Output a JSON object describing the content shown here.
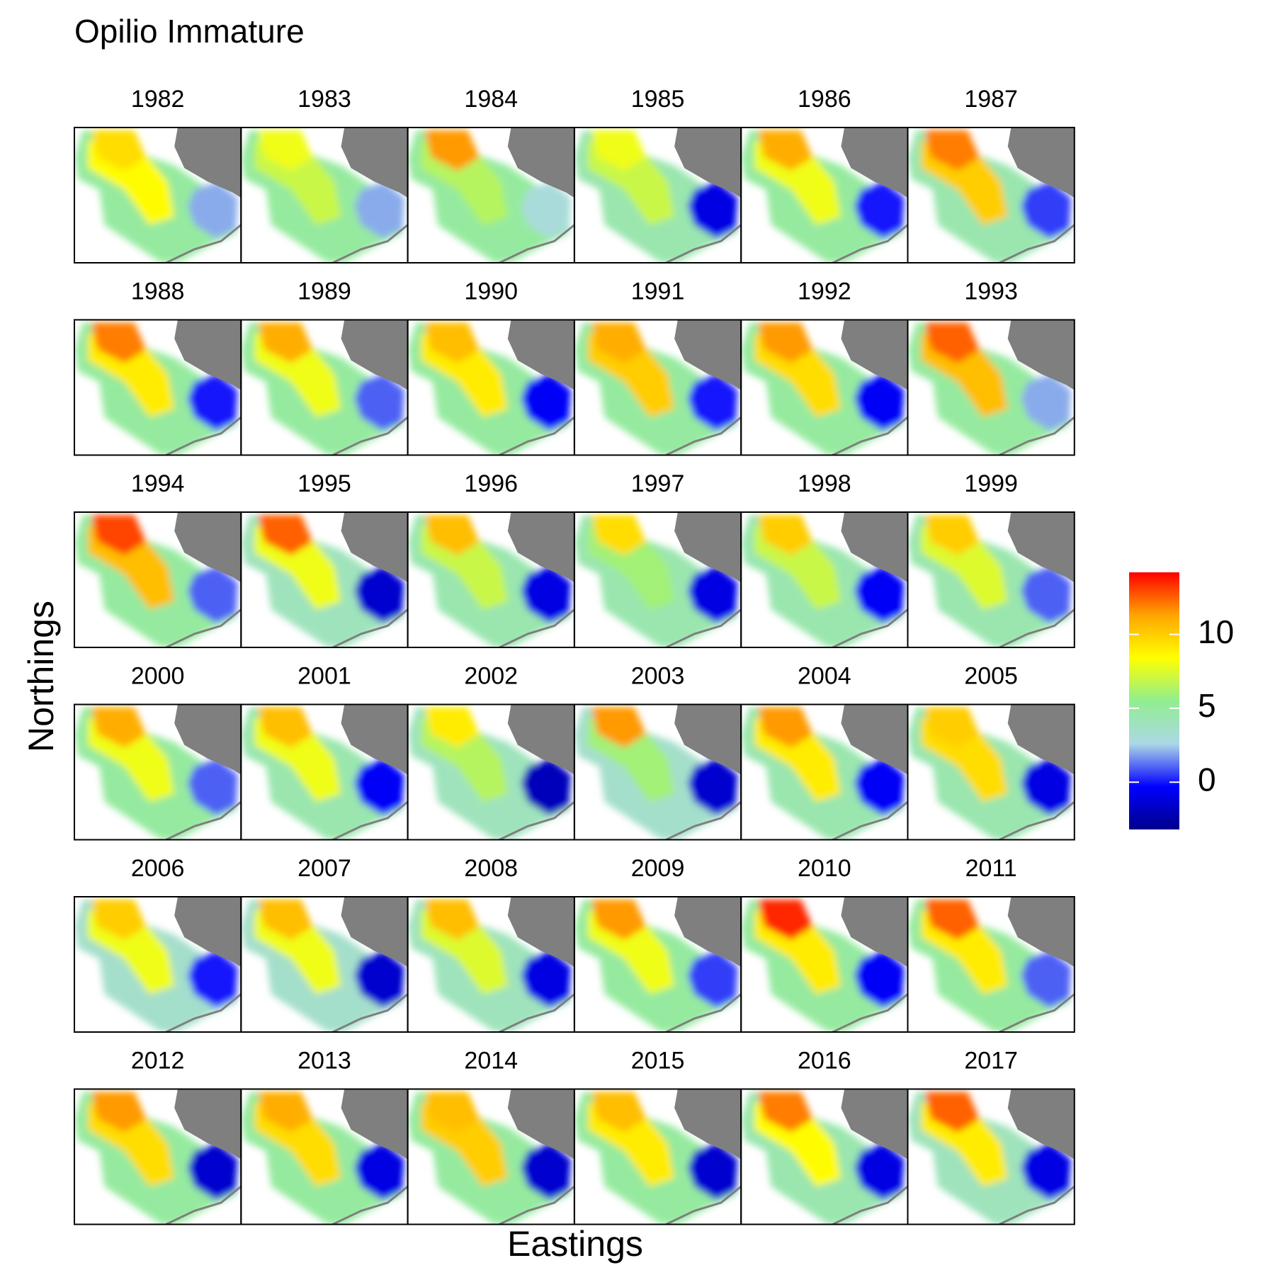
{
  "chart_data": {
    "type": "facet-map",
    "title": "Opilio Immature",
    "x_label": "Eastings",
    "y_label": "Northings",
    "clim": [
      -3.2,
      14.2
    ],
    "cticks": [
      0,
      5,
      10
    ],
    "colormap": [
      "#00008b",
      "#0000ff",
      "#add8e6",
      "#90ee90",
      "#ffff00",
      "#ffa500",
      "#ff0000"
    ],
    "land_color": "#7f7f7f",
    "panels": [
      {
        "year": "1982",
        "values": [
          9.5,
          8.5,
          5,
          2
        ]
      },
      {
        "year": "1983",
        "values": [
          8,
          7,
          5,
          2
        ]
      },
      {
        "year": "1984",
        "values": [
          11.5,
          6.5,
          5,
          3
        ]
      },
      {
        "year": "1985",
        "values": [
          8,
          7,
          4.5,
          -1
        ]
      },
      {
        "year": "1986",
        "values": [
          11,
          8,
          5,
          0
        ]
      },
      {
        "year": "1987",
        "values": [
          12,
          10,
          4.5,
          0.5
        ]
      },
      {
        "year": "1988",
        "values": [
          12,
          9,
          5,
          0
        ]
      },
      {
        "year": "1989",
        "values": [
          11,
          8,
          5,
          1
        ]
      },
      {
        "year": "1990",
        "values": [
          10.5,
          9,
          5,
          -0.5
        ]
      },
      {
        "year": "1991",
        "values": [
          11,
          10,
          5,
          0
        ]
      },
      {
        "year": "1992",
        "values": [
          11.5,
          9.5,
          5,
          -0.5
        ]
      },
      {
        "year": "1993",
        "values": [
          12.5,
          10.5,
          5,
          2
        ]
      },
      {
        "year": "1994",
        "values": [
          13,
          10.5,
          5,
          1
        ]
      },
      {
        "year": "1995",
        "values": [
          12.5,
          8,
          4,
          -1.5
        ]
      },
      {
        "year": "1996",
        "values": [
          10.5,
          7,
          4.5,
          -1
        ]
      },
      {
        "year": "1997",
        "values": [
          9.5,
          6,
          4.5,
          -1
        ]
      },
      {
        "year": "1998",
        "values": [
          10,
          7,
          4.5,
          -0.5
        ]
      },
      {
        "year": "1999",
        "values": [
          10,
          7.5,
          4.5,
          1
        ]
      },
      {
        "year": "2000",
        "values": [
          11,
          8,
          5,
          1
        ]
      },
      {
        "year": "2001",
        "values": [
          10.5,
          8,
          4.5,
          -0.5
        ]
      },
      {
        "year": "2002",
        "values": [
          9,
          6.5,
          4,
          -2
        ]
      },
      {
        "year": "2003",
        "values": [
          11.5,
          6,
          3.5,
          -1.5
        ]
      },
      {
        "year": "2004",
        "values": [
          11.5,
          9,
          4.5,
          -0.5
        ]
      },
      {
        "year": "2005",
        "values": [
          10,
          9.5,
          4.5,
          -1
        ]
      },
      {
        "year": "2006",
        "values": [
          10,
          8,
          3.5,
          0
        ]
      },
      {
        "year": "2007",
        "values": [
          10.5,
          8,
          3.5,
          -1.5
        ]
      },
      {
        "year": "2008",
        "values": [
          10.5,
          7.5,
          4,
          -1
        ]
      },
      {
        "year": "2009",
        "values": [
          11.5,
          8,
          5,
          0.5
        ]
      },
      {
        "year": "2010",
        "values": [
          13.5,
          9,
          5,
          -0.5
        ]
      },
      {
        "year": "2011",
        "values": [
          12.5,
          9,
          5,
          1
        ]
      },
      {
        "year": "2012",
        "values": [
          11.5,
          9.5,
          5,
          -1.5
        ]
      },
      {
        "year": "2013",
        "values": [
          11,
          9.5,
          5,
          -1
        ]
      },
      {
        "year": "2014",
        "values": [
          10.5,
          10,
          5,
          -1.5
        ]
      },
      {
        "year": "2015",
        "values": [
          10.5,
          9,
          5,
          -1.5
        ]
      },
      {
        "year": "2016",
        "values": [
          12,
          8.5,
          4.5,
          -1
        ]
      },
      {
        "year": "2017",
        "values": [
          12.5,
          9,
          4,
          -1
        ]
      }
    ]
  }
}
